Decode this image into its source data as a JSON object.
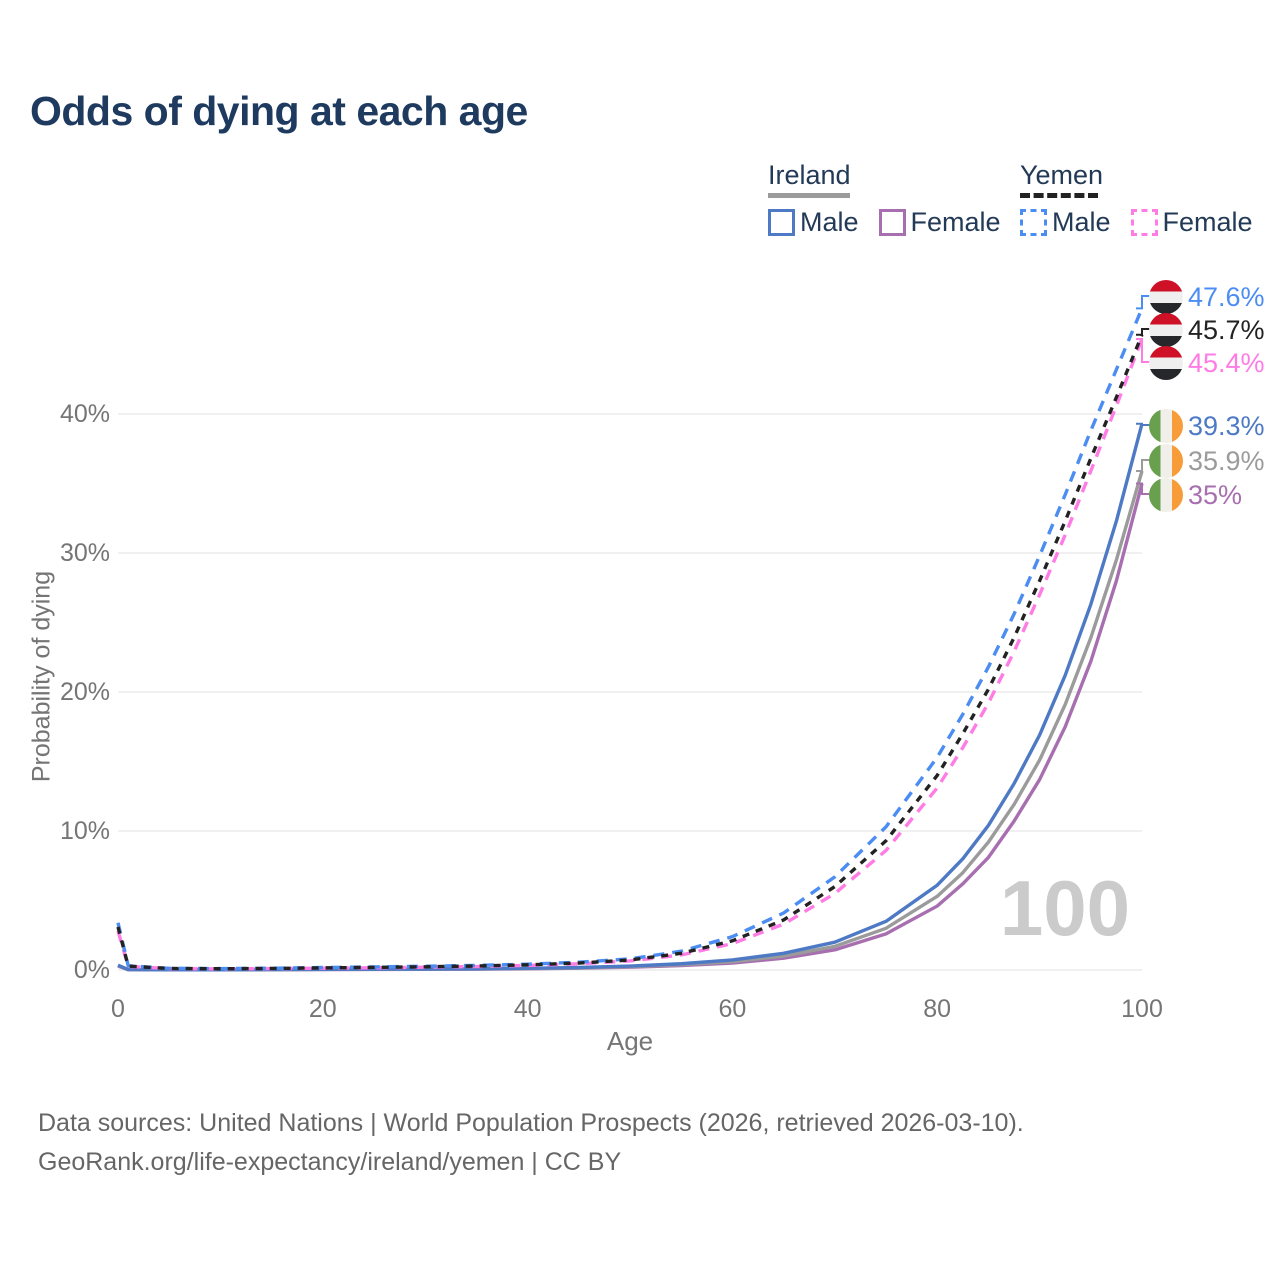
{
  "header": {
    "title": "Odds of dying at each age"
  },
  "legend": {
    "groups": [
      {
        "id": "ireland",
        "label": "Ireland",
        "items": [
          {
            "series": "ireland-male",
            "label": "Male"
          },
          {
            "series": "ireland-female",
            "label": "Female"
          }
        ]
      },
      {
        "id": "yemen",
        "label": "Yemen",
        "items": [
          {
            "series": "yemen-male",
            "label": "Male"
          },
          {
            "series": "yemen-female",
            "label": "Female"
          }
        ]
      }
    ]
  },
  "chart_data": {
    "type": "line",
    "title": "Odds of dying at each age",
    "xlabel": "Age",
    "ylabel": "Probability of dying",
    "xlim": [
      0,
      100
    ],
    "ylim": [
      0,
      49.5
    ],
    "grid": "horizontal",
    "legend_position": "top-right",
    "watermark": "100",
    "x_ticks": [
      {
        "value": 0,
        "label": "0"
      },
      {
        "value": 20,
        "label": "20"
      },
      {
        "value": 40,
        "label": "40"
      },
      {
        "value": 60,
        "label": "60"
      },
      {
        "value": 80,
        "label": "80"
      },
      {
        "value": 100,
        "label": "100"
      }
    ],
    "y_ticks": [
      {
        "value": 0,
        "label": "0%"
      },
      {
        "value": 10,
        "label": "10%"
      },
      {
        "value": 20,
        "label": "20%"
      },
      {
        "value": 30,
        "label": "30%"
      },
      {
        "value": 40,
        "label": "40%"
      }
    ],
    "x": [
      0,
      1,
      5,
      10,
      15,
      20,
      25,
      30,
      35,
      40,
      45,
      50,
      55,
      60,
      65,
      70,
      75,
      80,
      82.5,
      85,
      87.5,
      90,
      92.5,
      95,
      97.5,
      100
    ],
    "series": [
      {
        "id": "ireland-female",
        "name": "Ireland Female",
        "style": "solid",
        "color": "#a86fb0",
        "end_label": "35%",
        "values": [
          0.29,
          0.02,
          0.01,
          0.01,
          0.02,
          0.03,
          0.04,
          0.05,
          0.06,
          0.09,
          0.13,
          0.2,
          0.32,
          0.5,
          0.85,
          1.45,
          2.6,
          4.6,
          6.2,
          8.1,
          10.7,
          13.7,
          17.5,
          22.2,
          28.0,
          35.0
        ]
      },
      {
        "id": "ireland-total",
        "name": "Ireland",
        "style": "solid",
        "color": "#9b9b9b",
        "end_label": "35.9%",
        "values": [
          0.32,
          0.03,
          0.01,
          0.01,
          0.02,
          0.04,
          0.05,
          0.06,
          0.08,
          0.1,
          0.15,
          0.24,
          0.38,
          0.6,
          1.0,
          1.7,
          3.0,
          5.3,
          7.0,
          9.2,
          11.9,
          15.1,
          19.1,
          23.9,
          29.5,
          35.9
        ]
      },
      {
        "id": "ireland-male",
        "name": "Ireland Male",
        "style": "solid",
        "color": "#4e79c4",
        "end_label": "39.3%",
        "values": [
          0.35,
          0.03,
          0.01,
          0.01,
          0.03,
          0.05,
          0.06,
          0.07,
          0.09,
          0.12,
          0.18,
          0.28,
          0.45,
          0.72,
          1.2,
          2.0,
          3.5,
          6.1,
          8.0,
          10.4,
          13.4,
          16.9,
          21.2,
          26.3,
          32.3,
          39.3
        ]
      },
      {
        "id": "yemen-female",
        "name": "Yemen Female",
        "style": "dashed",
        "color": "#ff7ce5",
        "end_label": "45.4%",
        "values": [
          2.8,
          0.26,
          0.1,
          0.08,
          0.1,
          0.13,
          0.16,
          0.2,
          0.25,
          0.33,
          0.45,
          0.65,
          1.08,
          1.9,
          3.3,
          5.5,
          8.6,
          13.1,
          16.0,
          19.2,
          22.9,
          27.0,
          31.3,
          35.9,
          40.6,
          45.4
        ]
      },
      {
        "id": "yemen-male",
        "name": "Yemen Male",
        "style": "dashed",
        "color": "#4b8df2",
        "end_label": "47.6%",
        "values": [
          3.4,
          0.3,
          0.12,
          0.1,
          0.13,
          0.18,
          0.22,
          0.27,
          0.33,
          0.42,
          0.56,
          0.8,
          1.35,
          2.4,
          4.1,
          6.7,
          10.3,
          15.3,
          18.4,
          21.8,
          25.6,
          29.8,
          34.2,
          38.8,
          43.2,
          47.6
        ]
      },
      {
        "id": "yemen-total",
        "name": "Yemen",
        "style": "dashed",
        "color": "#222222",
        "end_label": "45.7%",
        "values": [
          3.1,
          0.28,
          0.11,
          0.09,
          0.11,
          0.15,
          0.19,
          0.23,
          0.29,
          0.37,
          0.5,
          0.72,
          1.2,
          2.1,
          3.6,
          6.0,
          9.3,
          14.0,
          17.0,
          20.2,
          23.9,
          28.0,
          32.3,
          36.8,
          41.2,
          45.7
        ]
      }
    ],
    "annotations": [
      {
        "series": "yemen-male",
        "label": "47.6%",
        "flag": "yemen"
      },
      {
        "series": "yemen-total",
        "label": "45.7%",
        "flag": "yemen"
      },
      {
        "series": "yemen-female",
        "label": "45.4%",
        "flag": "yemen"
      },
      {
        "series": "ireland-male",
        "label": "39.3%",
        "flag": "ireland"
      },
      {
        "series": "ireland-total",
        "label": "35.9%",
        "flag": "ireland"
      },
      {
        "series": "ireland-female",
        "label": "35%",
        "flag": "ireland"
      }
    ]
  },
  "colors": {
    "title": "#1e3a5f",
    "legend_text": "#233a57",
    "axis_text": "#757575",
    "grid": "#ececec",
    "watermark": "#cbcbcb",
    "footer_text": "#666666",
    "flags": {
      "yemen": [
        "#ce1126",
        "#efefef",
        "#26272b"
      ],
      "ireland": [
        "#68a04e",
        "#f1efe9",
        "#f79c39"
      ]
    }
  },
  "footer": {
    "line1": "Data sources: United Nations | World Population Prospects (2026, retrieved 2026-03-10).",
    "line2": "GeoRank.org/life-expectancy/ireland/yemen | CC BY"
  }
}
